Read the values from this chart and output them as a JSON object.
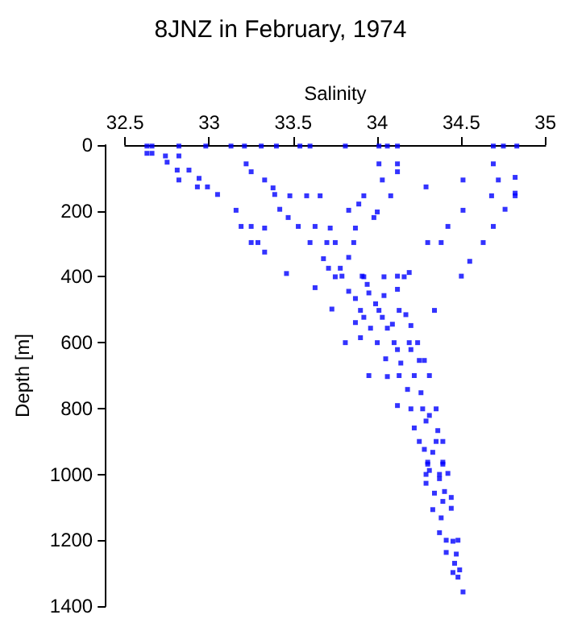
{
  "chart_data": {
    "type": "scatter",
    "title": "8JNZ in February, 1974",
    "xlabel": "Salinity",
    "ylabel": "Depth [m]",
    "xlim": [
      32.5,
      35
    ],
    "xticks": [
      32.5,
      33,
      33.5,
      34,
      34.5,
      35
    ],
    "ylim": [
      1400,
      0
    ],
    "yticks": [
      0,
      200,
      400,
      600,
      800,
      1000,
      1200,
      1400
    ],
    "grid": false,
    "marker": "square",
    "series": [
      {
        "color": "#0000ff",
        "x": [
          32.63,
          32.66,
          32.82,
          32.98,
          33.13,
          33.21,
          33.31,
          33.4,
          33.54,
          33.6,
          33.81,
          34.01,
          34.06,
          34.12,
          34.69,
          34.75,
          34.83,
          32.63,
          32.66,
          32.82,
          34.01,
          34.12,
          34.69,
          34.82,
          34.82,
          34.72,
          32.74,
          32.75,
          32.81,
          32.88,
          32.82,
          32.94,
          32.93,
          32.99,
          33.05,
          33.16,
          33.19,
          33.25,
          33.25,
          33.29,
          33.33,
          33.33,
          33.22,
          33.25,
          33.33,
          33.38,
          33.39,
          33.48,
          33.58,
          33.66,
          33.42,
          33.47,
          33.53,
          33.63,
          33.72,
          33.6,
          33.7,
          33.75,
          33.68,
          33.71,
          33.78,
          33.83,
          33.89,
          33.87,
          33.86,
          33.83,
          33.92,
          34.0,
          33.98,
          34.03,
          34.08,
          34.12,
          34.29,
          34.42,
          34.3,
          34.38,
          34.51,
          34.51,
          34.63,
          34.69,
          34.76,
          34.68,
          34.82,
          34.55,
          34.5,
          34.19,
          34.12,
          33.91,
          33.79,
          33.46,
          33.94,
          33.63,
          33.75,
          33.92,
          34.04,
          34.16,
          33.83,
          33.87,
          33.95,
          34.04,
          34.12,
          33.99,
          33.73,
          33.9,
          34.01,
          34.13,
          34.17,
          34.34,
          33.92,
          34.03,
          33.87,
          34.06,
          33.96,
          34.09,
          34.2,
          33.9,
          33.81,
          34.0,
          34.1,
          34.19,
          34.24,
          34.12,
          34.2,
          34.05,
          34.14,
          34.25,
          34.28,
          33.95,
          34.13,
          34.22,
          34.31,
          34.06,
          34.18,
          34.26,
          34.12,
          34.2,
          34.27,
          34.35,
          34.31,
          34.29,
          34.22,
          34.36,
          34.25,
          34.35,
          34.39,
          34.28,
          34.33,
          34.3,
          34.39,
          34.3,
          34.39,
          34.29,
          34.37,
          34.42,
          34.31,
          34.29,
          34.37,
          34.34,
          34.4,
          34.44,
          34.39,
          34.33,
          34.44,
          34.38,
          34.37,
          34.41,
          34.48,
          34.45,
          34.41,
          34.47,
          34.46,
          34.49,
          34.45,
          34.48,
          34.51
        ],
        "values": [
          3,
          3,
          3,
          3,
          3,
          3,
          3,
          3,
          3,
          3,
          3,
          3,
          3,
          3,
          3,
          3,
          3,
          25,
          25,
          33,
          57,
          57,
          57,
          98,
          146,
          106,
          33,
          52,
          76,
          76,
          106,
          101,
          127,
          127,
          150,
          198,
          247,
          247,
          296,
          296,
          325,
          252,
          57,
          81,
          106,
          130,
          150,
          154,
          154,
          154,
          195,
          220,
          247,
          247,
          252,
          296,
          296,
          296,
          345,
          374,
          374,
          198,
          179,
          252,
          296,
          341,
          154,
          203,
          220,
          106,
          154,
          81,
          127,
          247,
          296,
          296,
          198,
          106,
          296,
          247,
          195,
          154,
          154,
          353,
          398,
          387,
          398,
          398,
          398,
          390,
          423,
          433,
          400,
          400,
          400,
          400,
          444,
          466,
          449,
          457,
          438,
          482,
          498,
          502,
          502,
          502,
          515,
          502,
          523,
          523,
          539,
          556,
          556,
          544,
          548,
          585,
          600,
          600,
          600,
          600,
          600,
          621,
          621,
          649,
          662,
          654,
          654,
          700,
          700,
          700,
          700,
          703,
          742,
          752,
          791,
          801,
          801,
          801,
          821,
          838,
          859,
          867,
          900,
          900,
          900,
          924,
          933,
          969,
          969,
          963,
          963,
          1000,
          1000,
          997,
          988,
          1027,
          1013,
          1057,
          1052,
          1070,
          1082,
          1107,
          1103,
          1132,
          1177,
          1200,
          1200,
          1203,
          1237,
          1242,
          1270,
          1290,
          1298,
          1312,
          1357
        ]
      }
    ]
  }
}
